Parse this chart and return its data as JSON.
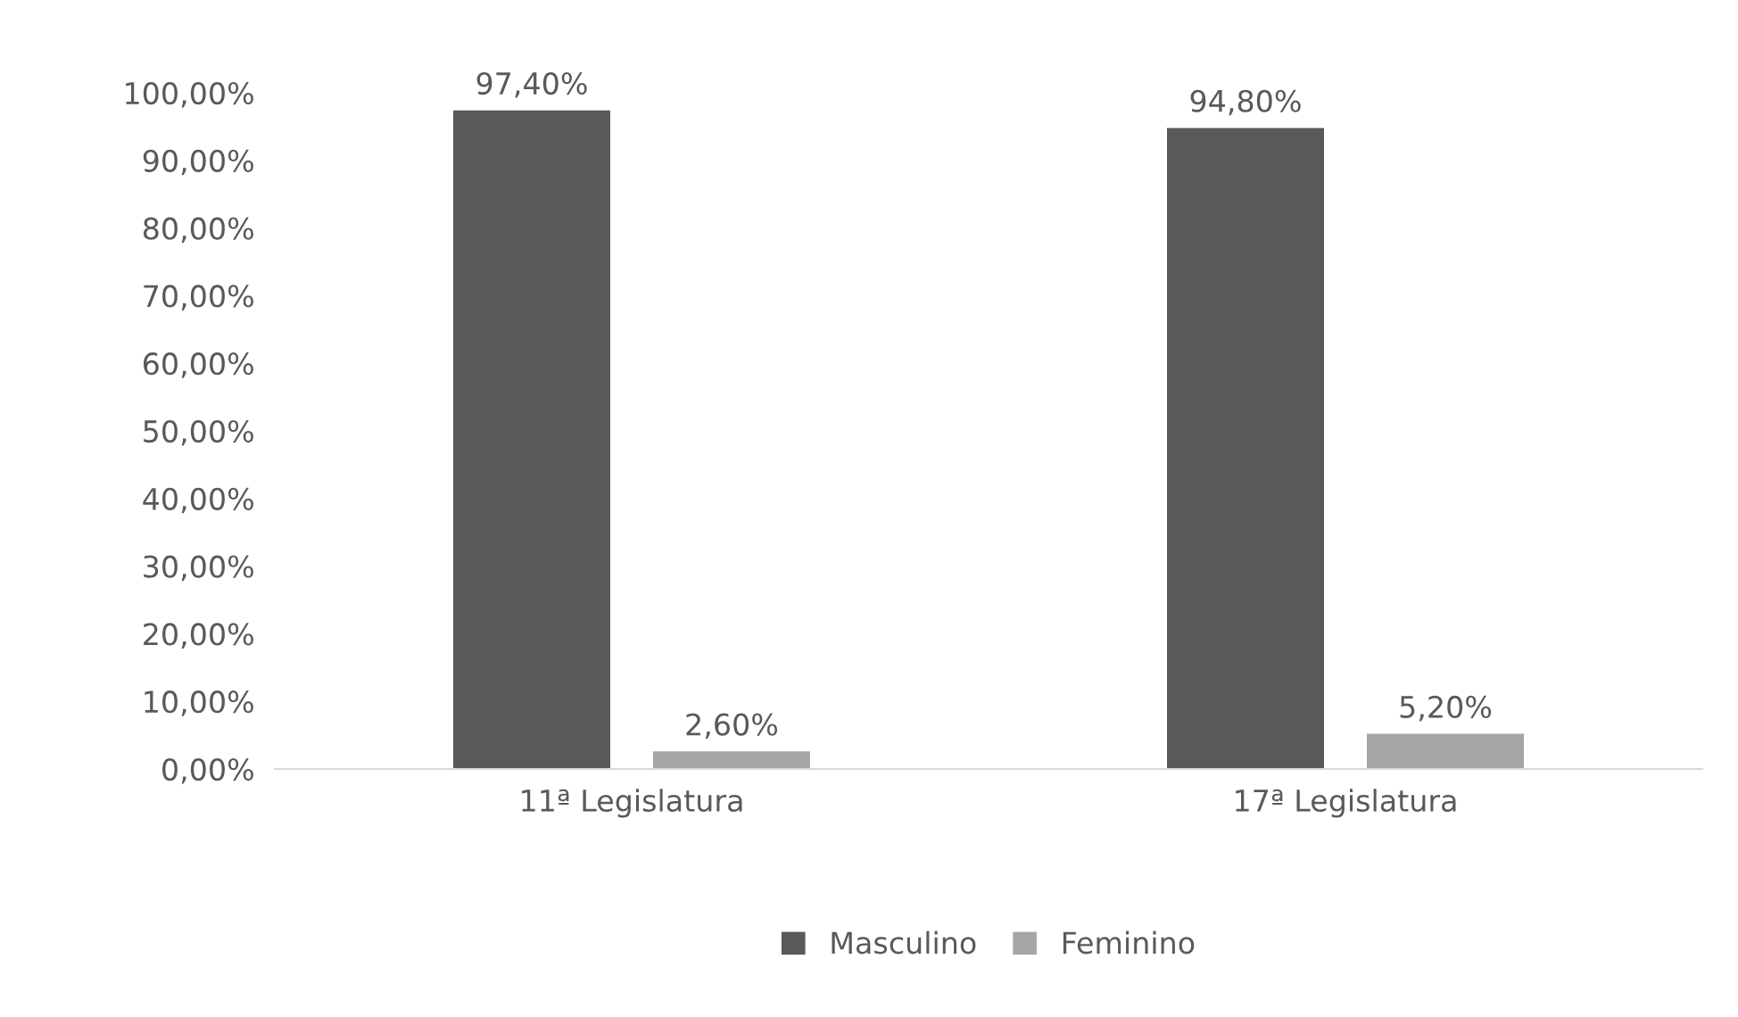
{
  "chart_data": {
    "type": "bar",
    "categories": [
      "11ª Legislatura",
      "17ª Legislatura"
    ],
    "series": [
      {
        "name": "Masculino",
        "color": "#595959",
        "values": [
          97.4,
          94.8
        ],
        "value_labels": [
          "97,40%",
          "94,80%"
        ]
      },
      {
        "name": "Feminino",
        "color": "#a6a6a6",
        "values": [
          2.6,
          5.2
        ],
        "value_labels": [
          "2,60%",
          "5,20%"
        ]
      }
    ],
    "ylim": [
      0,
      100
    ],
    "yticks": [
      {
        "value": 0,
        "label": "0,00%"
      },
      {
        "value": 10,
        "label": "10,00%"
      },
      {
        "value": 20,
        "label": "20,00%"
      },
      {
        "value": 30,
        "label": "30,00%"
      },
      {
        "value": 40,
        "label": "40,00%"
      },
      {
        "value": 50,
        "label": "50,00%"
      },
      {
        "value": 60,
        "label": "60,00%"
      },
      {
        "value": 70,
        "label": "70,00%"
      },
      {
        "value": 80,
        "label": "80,00%"
      },
      {
        "value": 90,
        "label": "90,00%"
      },
      {
        "value": 100,
        "label": "100,00%"
      }
    ],
    "grid": false,
    "legend": "bottom"
  }
}
